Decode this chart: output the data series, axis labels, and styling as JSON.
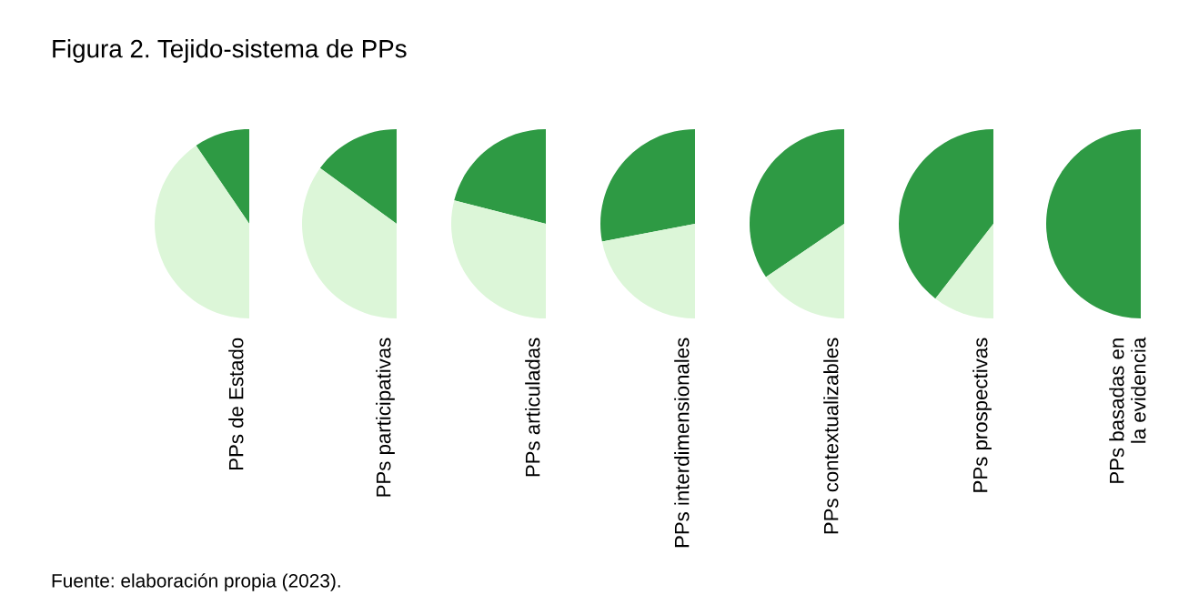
{
  "chart_data": [
    {
      "type": "pie",
      "title": "Figura 2. Tejido-sistema de PPs",
      "xlabel": "PPs de Estado",
      "categories": [
        null,
        null
      ],
      "values": [
        19,
        81
      ],
      "colors": [
        "#2e9a44",
        "#dcf6d8"
      ],
      "annotations": [
        "Fuente: elaboración propia (2023)."
      ]
    },
    {
      "type": "pie",
      "xlabel": "PPs participativas",
      "categories": [
        null,
        null
      ],
      "values": [
        30,
        70
      ],
      "colors": [
        "#2e9a44",
        "#dcf6d8"
      ]
    },
    {
      "type": "pie",
      "xlabel": "PPs articuladas",
      "categories": [
        null,
        null
      ],
      "values": [
        42,
        58
      ],
      "colors": [
        "#2e9a44",
        "#dcf6d8"
      ]
    },
    {
      "type": "pie",
      "xlabel": "PPs interdimensionales",
      "categories": [
        null,
        null
      ],
      "values": [
        56,
        44
      ],
      "colors": [
        "#2e9a44",
        "#dcf6d8"
      ]
    },
    {
      "type": "pie",
      "xlabel": "PPs contextualizables",
      "categories": [
        null,
        null
      ],
      "values": [
        69,
        31
      ],
      "colors": [
        "#2e9a44",
        "#dcf6d8"
      ]
    },
    {
      "type": "pie",
      "xlabel": "PPs prospectivas",
      "categories": [
        null,
        null
      ],
      "values": [
        79,
        21
      ],
      "colors": [
        "#2e9a44",
        "#dcf6d8"
      ]
    },
    {
      "type": "pie",
      "xlabel": "PPs basadas en\nla evidencia",
      "categories": [
        null,
        null
      ],
      "values": [
        100,
        0
      ],
      "colors": [
        "#2e9a44",
        "#dcf6d8"
      ]
    }
  ]
}
